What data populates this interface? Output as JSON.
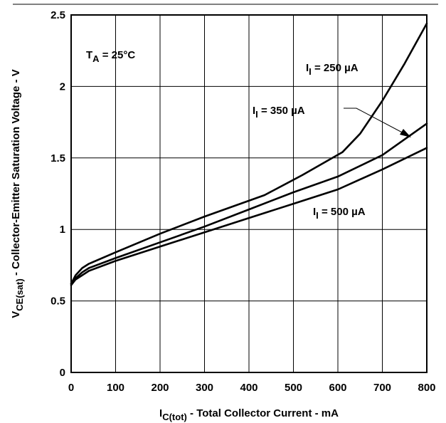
{
  "chart_data": {
    "type": "line",
    "xlabel": {
      "main": "I",
      "sub": "C(tot)",
      "rest": " -  Total Collector Current -  mA"
    },
    "ylabel": {
      "main": "V",
      "sub": "CE(sat)",
      "rest": " -  Collector-Emitter Saturation Voltage -  V"
    },
    "xlim": [
      0,
      800
    ],
    "ylim": [
      0,
      2.5
    ],
    "x_ticks": [
      0,
      100,
      200,
      300,
      400,
      500,
      600,
      700,
      800
    ],
    "x_tick_labels": [
      "0",
      "100",
      "200",
      "300",
      "400",
      "500",
      "600",
      "700",
      "800"
    ],
    "y_ticks": [
      0,
      0.5,
      1,
      1.5,
      2,
      2.5
    ],
    "y_tick_labels": [
      "0",
      "0.5",
      "1",
      "1.5",
      "2",
      "2.5"
    ],
    "grid": true,
    "series": [
      {
        "name": "I_I = 250 µA",
        "x": [
          0,
          10,
          25,
          40,
          100,
          200,
          300,
          435,
          520,
          610,
          650,
          700,
          750,
          800
        ],
        "y": [
          0.62,
          0.68,
          0.73,
          0.76,
          0.84,
          0.97,
          1.09,
          1.24,
          1.38,
          1.54,
          1.67,
          1.9,
          2.16,
          2.44
        ]
      },
      {
        "name": "I_I = 350 µA",
        "x": [
          0,
          10,
          25,
          40,
          100,
          200,
          300,
          400,
          500,
          600,
          700,
          800
        ],
        "y": [
          0.62,
          0.66,
          0.7,
          0.73,
          0.8,
          0.91,
          1.02,
          1.14,
          1.26,
          1.37,
          1.52,
          1.74
        ]
      },
      {
        "name": "I_I = 500 µA",
        "x": [
          0,
          10,
          25,
          40,
          100,
          200,
          300,
          400,
          500,
          600,
          700,
          800
        ],
        "y": [
          0.61,
          0.65,
          0.68,
          0.71,
          0.78,
          0.88,
          0.98,
          1.08,
          1.18,
          1.28,
          1.42,
          1.57
        ]
      }
    ],
    "annotations": [
      {
        "main": "T",
        "sub": "A",
        "rest": " = 25°C"
      },
      {
        "main": "I",
        "sub": "I",
        "rest": " = 250 µA"
      },
      {
        "main": "I",
        "sub": "I",
        "rest": " = 350 µA"
      },
      {
        "main": "I",
        "sub": "I",
        "rest": " = 500 µA"
      }
    ]
  }
}
